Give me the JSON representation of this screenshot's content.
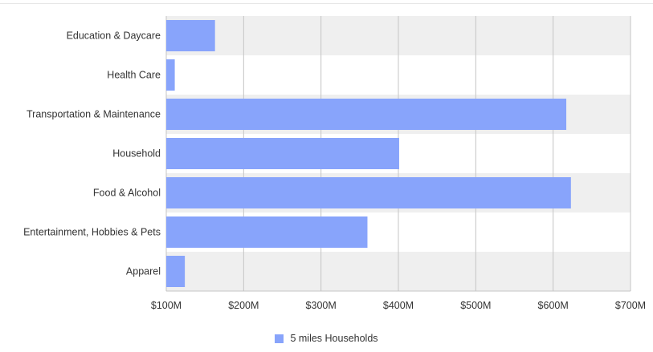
{
  "chart_data": {
    "type": "bar",
    "orientation": "horizontal",
    "categories": [
      "Education & Daycare",
      "Health Care",
      "Transportation & Maintenance",
      "Household",
      "Food & Alcohol",
      "Entertainment, Hobbies & Pets",
      "Apparel"
    ],
    "series": [
      {
        "name": "5 miles Households",
        "values": [
          163,
          111,
          617,
          401,
          623,
          360,
          124
        ],
        "color": "#88a4fb"
      }
    ],
    "xlim": [
      100,
      700
    ],
    "x_ticks": [
      100,
      200,
      300,
      400,
      500,
      600,
      700
    ],
    "x_tick_labels": [
      "$100M",
      "$200M",
      "$300M",
      "$400M",
      "$500M",
      "$600M",
      "$700M"
    ],
    "unit": "$M",
    "grid": true,
    "band_color": "#efefef",
    "legend_position": "bottom-center"
  }
}
